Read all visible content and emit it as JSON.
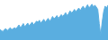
{
  "chart_data": {
    "type": "area",
    "values": [
      42,
      40,
      38,
      42,
      44,
      40,
      43,
      46,
      42,
      44,
      46,
      44,
      48,
      52,
      46,
      50,
      55,
      48,
      52,
      56,
      50,
      54,
      58,
      52,
      56,
      60,
      58,
      62,
      56,
      60,
      64,
      58,
      62,
      66,
      60,
      64,
      70,
      65,
      68,
      72,
      66,
      70,
      74,
      70,
      74,
      78,
      72,
      76,
      82,
      78,
      80,
      85,
      80,
      84,
      88,
      82,
      88,
      92,
      85,
      90,
      95,
      88,
      92,
      96,
      90,
      94,
      90,
      85,
      55,
      30,
      58,
      80,
      92,
      88,
      94
    ],
    "color": "#5aaee0",
    "ylim": [
      20,
      105
    ],
    "grid": false,
    "tick_labels": false
  }
}
